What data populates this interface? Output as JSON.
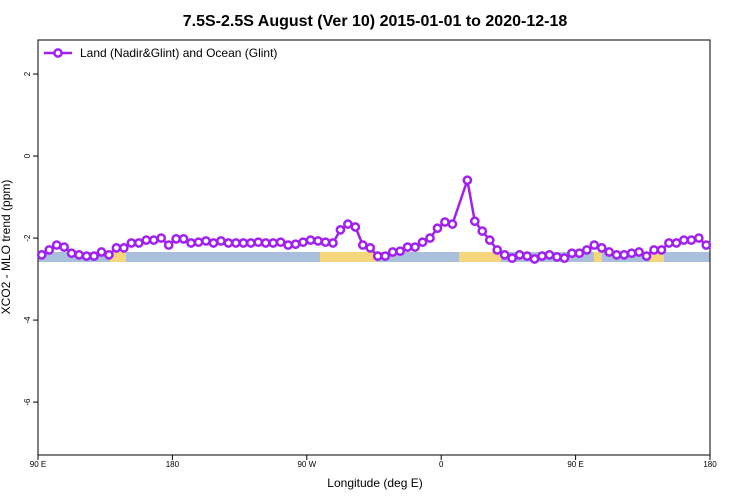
{
  "chart_data": {
    "type": "line",
    "title": "7.5S-2.5S August (Ver 10)   2015-01-01 to 2020-12-18",
    "xlabel": "Longitude (deg E)",
    "ylabel": "XCO2 - MLO trend (ppm)",
    "xlim": [
      90,
      540
    ],
    "ylim": [
      -7.29,
      2.83
    ],
    "xticks": [
      {
        "value": 90,
        "label": "90 E"
      },
      180,
      {
        "value": 270,
        "label": "90 W"
      },
      {
        "value": 360,
        "label": "0"
      },
      {
        "value": 450,
        "label": "90 E"
      },
      {
        "value": 540,
        "label": "180"
      }
    ],
    "yticks": [
      -6,
      -4,
      -2,
      0,
      2
    ],
    "legend": "top-left",
    "x": [
      92.5,
      97.5,
      102.5,
      107.5,
      112.5,
      117.5,
      122.5,
      127.5,
      132.5,
      137.5,
      142.5,
      147.5,
      152.5,
      157.5,
      162.5,
      167.5,
      172.5,
      177.5,
      182.5,
      187.5,
      192.5,
      197.5,
      202.5,
      207.5,
      212.5,
      217.5,
      222.5,
      227.5,
      232.5,
      237.5,
      242.5,
      247.5,
      252.5,
      257.5,
      262.5,
      267.5,
      272.5,
      277.5,
      282.5,
      287.5,
      292.5,
      297.5,
      302.5,
      307.5,
      312.5,
      317.5,
      322.5,
      327.5,
      332.5,
      337.5,
      342.5,
      347.5,
      352.5,
      357.5,
      362.5,
      367.5,
      377.5,
      382.5,
      387.5,
      392.5,
      397.5,
      402.5,
      407.5,
      412.5,
      417.5,
      422.5,
      427.5,
      432.5,
      437.5,
      442.5,
      447.5,
      452.5,
      457.5,
      462.5,
      467.5,
      472.5,
      477.5,
      482.5,
      487.5,
      492.5,
      497.5,
      502.5,
      507.5,
      512.5,
      517.5,
      522.5,
      527.5,
      532.5,
      537.5
    ],
    "series": [
      {
        "name": "Land (Nadir&Glint) and Ocean (Glint)",
        "color": "#a020f0",
        "values": [
          -2.41,
          -2.29,
          -2.17,
          -2.22,
          -2.37,
          -2.41,
          -2.44,
          -2.44,
          -2.34,
          -2.41,
          -2.24,
          -2.24,
          -2.12,
          -2.12,
          -2.05,
          -2.05,
          -2.0,
          -2.17,
          -2.02,
          -2.02,
          -2.12,
          -2.1,
          -2.07,
          -2.12,
          -2.07,
          -2.12,
          -2.12,
          -2.12,
          -2.12,
          -2.1,
          -2.12,
          -2.12,
          -2.1,
          -2.17,
          -2.15,
          -2.1,
          -2.05,
          -2.07,
          -2.1,
          -2.12,
          -1.8,
          -1.66,
          -1.73,
          -2.17,
          -2.24,
          -2.44,
          -2.44,
          -2.34,
          -2.32,
          -2.22,
          -2.22,
          -2.1,
          -2.0,
          -1.76,
          -1.61,
          -1.66,
          -0.59,
          -1.59,
          -1.83,
          -2.05,
          -2.29,
          -2.41,
          -2.49,
          -2.41,
          -2.44,
          -2.51,
          -2.44,
          -2.41,
          -2.46,
          -2.49,
          -2.37,
          -2.37,
          -2.29,
          -2.17,
          -2.24,
          -2.34,
          -2.41,
          -2.41,
          -2.37,
          -2.34,
          -2.44,
          -2.29,
          -2.29,
          -2.12,
          -2.12,
          -2.05,
          -2.05,
          -2.0,
          -2.17
        ]
      }
    ]
  }
}
